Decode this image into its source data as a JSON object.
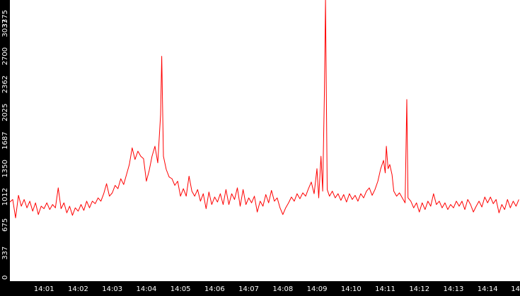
{
  "chart_data": {
    "type": "line",
    "title": "",
    "xlabel": "",
    "ylabel": "",
    "grid": false,
    "legend": "none",
    "colors": {
      "background": "#000000",
      "plot_area": "#ffffff",
      "axis_text": "#ffffff",
      "series": "#ff0000"
    },
    "xlim": [
      "14:00:00",
      "14:14:57"
    ],
    "ylim": [
      0,
      3375
    ],
    "x_ticks": [
      "14:01",
      "14:02",
      "14:03",
      "14:04",
      "14:05",
      "14:06",
      "14:07",
      "14:08",
      "14:09",
      "14:10",
      "14:11",
      "14:12",
      "14:13",
      "14:14",
      "14"
    ],
    "y_ticks": [
      "0",
      "337",
      "675",
      "1012",
      "1350",
      "1687",
      "2025",
      "2362",
      "2700",
      "3037",
      "3375"
    ],
    "series": [
      {
        "name": "",
        "x_unit": "seconds",
        "points": [
          [
            "14:00:00",
            950
          ],
          [
            "14:00:05",
            980
          ],
          [
            "14:00:10",
            760
          ],
          [
            "14:00:15",
            1030
          ],
          [
            "14:00:20",
            900
          ],
          [
            "14:00:25",
            980
          ],
          [
            "14:00:30",
            880
          ],
          [
            "14:00:35",
            960
          ],
          [
            "14:00:40",
            840
          ],
          [
            "14:00:45",
            940
          ],
          [
            "14:00:50",
            800
          ],
          [
            "14:00:55",
            900
          ],
          [
            "14:01:00",
            870
          ],
          [
            "14:01:05",
            940
          ],
          [
            "14:01:10",
            860
          ],
          [
            "14:01:15",
            920
          ],
          [
            "14:01:20",
            880
          ],
          [
            "14:01:25",
            1120
          ],
          [
            "14:01:30",
            870
          ],
          [
            "14:01:35",
            940
          ],
          [
            "14:01:40",
            820
          ],
          [
            "14:01:45",
            900
          ],
          [
            "14:01:50",
            790
          ],
          [
            "14:01:55",
            880
          ],
          [
            "14:02:00",
            840
          ],
          [
            "14:02:05",
            920
          ],
          [
            "14:02:10",
            850
          ],
          [
            "14:02:15",
            960
          ],
          [
            "14:02:20",
            880
          ],
          [
            "14:02:25",
            960
          ],
          [
            "14:02:30",
            930
          ],
          [
            "14:02:35",
            1000
          ],
          [
            "14:02:40",
            960
          ],
          [
            "14:02:45",
            1050
          ],
          [
            "14:02:50",
            1170
          ],
          [
            "14:02:55",
            1020
          ],
          [
            "14:03:00",
            1060
          ],
          [
            "14:03:05",
            1150
          ],
          [
            "14:03:10",
            1110
          ],
          [
            "14:03:15",
            1230
          ],
          [
            "14:03:20",
            1160
          ],
          [
            "14:03:25",
            1280
          ],
          [
            "14:03:30",
            1400
          ],
          [
            "14:03:35",
            1600
          ],
          [
            "14:03:40",
            1460
          ],
          [
            "14:03:45",
            1560
          ],
          [
            "14:03:50",
            1500
          ],
          [
            "14:03:55",
            1470
          ],
          [
            "14:04:00",
            1200
          ],
          [
            "14:04:05",
            1330
          ],
          [
            "14:04:10",
            1500
          ],
          [
            "14:04:15",
            1620
          ],
          [
            "14:04:20",
            1420
          ],
          [
            "14:04:25",
            2000
          ],
          [
            "14:04:27",
            2700
          ],
          [
            "14:04:30",
            1500
          ],
          [
            "14:04:35",
            1340
          ],
          [
            "14:04:40",
            1250
          ],
          [
            "14:04:45",
            1230
          ],
          [
            "14:04:50",
            1150
          ],
          [
            "14:04:55",
            1200
          ],
          [
            "14:05:00",
            1020
          ],
          [
            "14:05:05",
            1110
          ],
          [
            "14:05:10",
            1020
          ],
          [
            "14:05:15",
            1260
          ],
          [
            "14:05:20",
            1080
          ],
          [
            "14:05:25",
            1020
          ],
          [
            "14:05:30",
            1100
          ],
          [
            "14:05:35",
            960
          ],
          [
            "14:05:40",
            1050
          ],
          [
            "14:05:45",
            870
          ],
          [
            "14:05:50",
            1070
          ],
          [
            "14:05:55",
            920
          ],
          [
            "14:06:00",
            1010
          ],
          [
            "14:06:05",
            950
          ],
          [
            "14:06:10",
            1050
          ],
          [
            "14:06:15",
            920
          ],
          [
            "14:06:20",
            1100
          ],
          [
            "14:06:25",
            920
          ],
          [
            "14:06:30",
            1050
          ],
          [
            "14:06:35",
            980
          ],
          [
            "14:06:40",
            1120
          ],
          [
            "14:06:45",
            900
          ],
          [
            "14:06:50",
            1100
          ],
          [
            "14:06:55",
            920
          ],
          [
            "14:07:00",
            1000
          ],
          [
            "14:07:05",
            940
          ],
          [
            "14:07:10",
            1020
          ],
          [
            "14:07:15",
            830
          ],
          [
            "14:07:20",
            960
          ],
          [
            "14:07:25",
            900
          ],
          [
            "14:07:30",
            1040
          ],
          [
            "14:07:35",
            940
          ],
          [
            "14:07:40",
            1090
          ],
          [
            "14:07:45",
            960
          ],
          [
            "14:07:50",
            1000
          ],
          [
            "14:07:55",
            880
          ],
          [
            "14:08:00",
            800
          ],
          [
            "14:08:05",
            880
          ],
          [
            "14:08:10",
            940
          ],
          [
            "14:08:15",
            1010
          ],
          [
            "14:08:20",
            960
          ],
          [
            "14:08:25",
            1050
          ],
          [
            "14:08:30",
            990
          ],
          [
            "14:08:35",
            1060
          ],
          [
            "14:08:40",
            1020
          ],
          [
            "14:08:45",
            1110
          ],
          [
            "14:08:50",
            1190
          ],
          [
            "14:08:55",
            1050
          ],
          [
            "14:09:00",
            1350
          ],
          [
            "14:09:03",
            1000
          ],
          [
            "14:09:07",
            1500
          ],
          [
            "14:09:10",
            1080
          ],
          [
            "14:09:13",
            2240
          ],
          [
            "14:09:15",
            3375
          ],
          [
            "14:09:18",
            1100
          ],
          [
            "14:09:22",
            1020
          ],
          [
            "14:09:27",
            1080
          ],
          [
            "14:09:32",
            1000
          ],
          [
            "14:09:37",
            1050
          ],
          [
            "14:09:42",
            970
          ],
          [
            "14:09:47",
            1040
          ],
          [
            "14:09:52",
            950
          ],
          [
            "14:09:57",
            1050
          ],
          [
            "14:10:02",
            980
          ],
          [
            "14:10:07",
            1030
          ],
          [
            "14:10:12",
            960
          ],
          [
            "14:10:17",
            1050
          ],
          [
            "14:10:22",
            1000
          ],
          [
            "14:10:27",
            1080
          ],
          [
            "14:10:32",
            1120
          ],
          [
            "14:10:37",
            1030
          ],
          [
            "14:10:42",
            1100
          ],
          [
            "14:10:47",
            1200
          ],
          [
            "14:10:52",
            1350
          ],
          [
            "14:10:57",
            1450
          ],
          [
            "14:11:00",
            1300
          ],
          [
            "14:11:02",
            1620
          ],
          [
            "14:11:05",
            1350
          ],
          [
            "14:11:08",
            1400
          ],
          [
            "14:11:12",
            1280
          ],
          [
            "14:11:15",
            1080
          ],
          [
            "14:11:20",
            1020
          ],
          [
            "14:11:25",
            1060
          ],
          [
            "14:11:30",
            1000
          ],
          [
            "14:11:35",
            940
          ],
          [
            "14:11:38",
            2180
          ],
          [
            "14:11:40",
            1000
          ],
          [
            "14:11:45",
            960
          ],
          [
            "14:11:50",
            880
          ],
          [
            "14:11:55",
            940
          ],
          [
            "14:12:00",
            830
          ],
          [
            "14:12:05",
            940
          ],
          [
            "14:12:10",
            860
          ],
          [
            "14:12:15",
            960
          ],
          [
            "14:12:20",
            900
          ],
          [
            "14:12:25",
            1050
          ],
          [
            "14:12:30",
            920
          ],
          [
            "14:12:35",
            960
          ],
          [
            "14:12:40",
            880
          ],
          [
            "14:12:45",
            940
          ],
          [
            "14:12:50",
            860
          ],
          [
            "14:12:55",
            920
          ],
          [
            "14:13:00",
            880
          ],
          [
            "14:13:05",
            960
          ],
          [
            "14:13:10",
            900
          ],
          [
            "14:13:15",
            960
          ],
          [
            "14:13:20",
            860
          ],
          [
            "14:13:25",
            980
          ],
          [
            "14:13:30",
            920
          ],
          [
            "14:13:35",
            830
          ],
          [
            "14:13:40",
            900
          ],
          [
            "14:13:45",
            960
          ],
          [
            "14:13:50",
            890
          ],
          [
            "14:13:55",
            1010
          ],
          [
            "14:14:00",
            940
          ],
          [
            "14:14:05",
            1010
          ],
          [
            "14:14:10",
            930
          ],
          [
            "14:14:15",
            980
          ],
          [
            "14:14:20",
            820
          ],
          [
            "14:14:25",
            920
          ],
          [
            "14:14:30",
            860
          ],
          [
            "14:14:35",
            980
          ],
          [
            "14:14:40",
            880
          ],
          [
            "14:14:45",
            960
          ],
          [
            "14:14:50",
            900
          ],
          [
            "14:14:55",
            980
          ]
        ]
      }
    ]
  }
}
